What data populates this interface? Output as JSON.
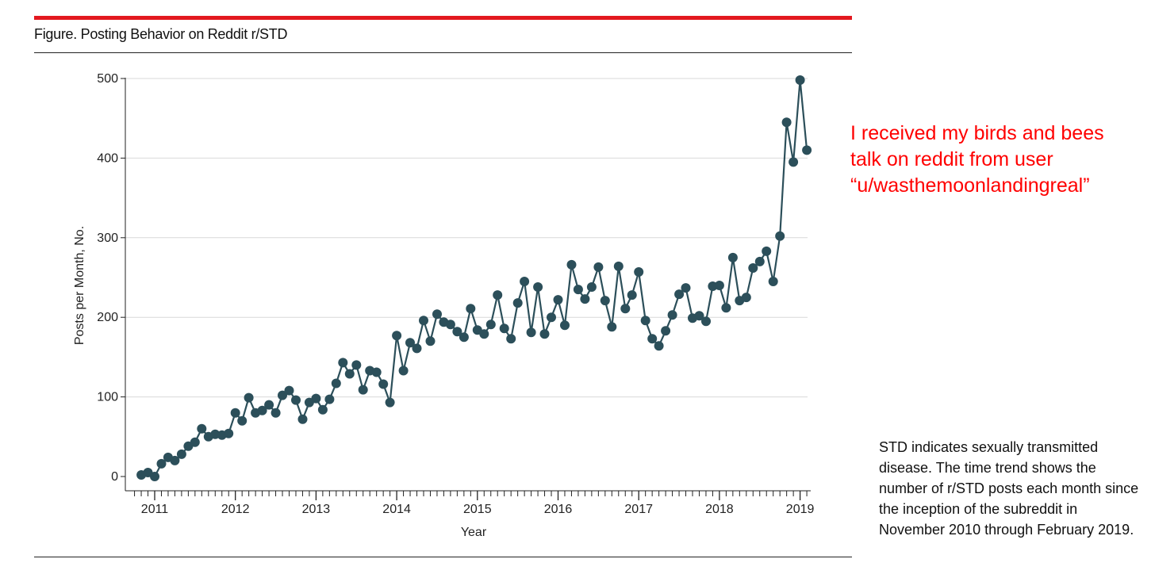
{
  "figure": {
    "title": "Figure. Posting Behavior on Reddit r/STD",
    "caption": "STD indicates sexually transmitted disease. The time trend shows the number of r/STD posts each month since the inception of the subreddit in November 2010 through February 2019."
  },
  "annotation": {
    "text": "I received my birds and bees talk on reddit from user “u/wasthemoonlandingreal”"
  },
  "colors": {
    "accent_rule": "#e3181f",
    "series": "#2c4f5a",
    "annotation": "#ff0000",
    "grid": "#d9d9d9"
  },
  "chart_data": {
    "type": "line",
    "xlabel": "Year",
    "ylabel": "Posts per Month, No.",
    "ylim": [
      0,
      500
    ],
    "yticks": [
      0,
      100,
      200,
      300,
      400,
      500
    ],
    "xticks": [
      "2011",
      "2012",
      "2013",
      "2014",
      "2015",
      "2016",
      "2017",
      "2018",
      "2019"
    ],
    "grid": "horizontal",
    "markers": true,
    "series": [
      {
        "x": [
          "2010-11",
          "2010-12",
          "2011-01",
          "2011-02",
          "2011-03",
          "2011-04",
          "2011-05",
          "2011-06",
          "2011-07",
          "2011-08",
          "2011-09",
          "2011-10",
          "2011-11",
          "2011-12",
          "2012-01",
          "2012-02",
          "2012-03",
          "2012-04",
          "2012-05",
          "2012-06",
          "2012-07",
          "2012-08",
          "2012-09",
          "2012-10",
          "2012-11",
          "2012-12",
          "2013-01",
          "2013-02",
          "2013-03",
          "2013-04",
          "2013-05",
          "2013-06",
          "2013-07",
          "2013-08",
          "2013-09",
          "2013-10",
          "2013-11",
          "2013-12",
          "2014-01",
          "2014-02",
          "2014-03",
          "2014-04",
          "2014-05",
          "2014-06",
          "2014-07",
          "2014-08",
          "2014-09",
          "2014-10",
          "2014-11",
          "2014-12",
          "2015-01",
          "2015-02",
          "2015-03",
          "2015-04",
          "2015-05",
          "2015-06",
          "2015-07",
          "2015-08",
          "2015-09",
          "2015-10",
          "2015-11",
          "2015-12",
          "2016-01",
          "2016-02",
          "2016-03",
          "2016-04",
          "2016-05",
          "2016-06",
          "2016-07",
          "2016-08",
          "2016-09",
          "2016-10",
          "2016-11",
          "2016-12",
          "2017-01",
          "2017-02",
          "2017-03",
          "2017-04",
          "2017-05",
          "2017-06",
          "2017-07",
          "2017-08",
          "2017-09",
          "2017-10",
          "2017-11",
          "2017-12",
          "2018-01",
          "2018-02",
          "2018-03",
          "2018-04",
          "2018-05",
          "2018-06",
          "2018-07",
          "2018-08",
          "2018-09",
          "2018-10",
          "2018-11",
          "2018-12",
          "2019-01",
          "2019-02"
        ],
        "values": [
          2,
          5,
          0,
          16,
          24,
          20,
          28,
          38,
          43,
          60,
          50,
          53,
          52,
          54,
          80,
          70,
          99,
          80,
          83,
          90,
          80,
          102,
          108,
          96,
          72,
          93,
          98,
          84,
          97,
          117,
          143,
          129,
          140,
          109,
          133,
          131,
          116,
          93,
          177,
          133,
          168,
          161,
          196,
          170,
          204,
          194,
          191,
          182,
          175,
          211,
          184,
          179,
          191,
          228,
          186,
          173,
          218,
          245,
          181,
          238,
          179,
          200,
          222,
          190,
          266,
          235,
          223,
          238,
          263,
          221,
          188,
          264,
          211,
          228,
          257,
          196,
          173,
          164,
          183,
          203,
          229,
          237,
          199,
          202,
          195,
          239,
          240,
          212,
          275,
          221,
          225,
          262,
          270,
          283,
          245,
          302,
          445,
          395,
          498,
          410
        ]
      }
    ]
  }
}
